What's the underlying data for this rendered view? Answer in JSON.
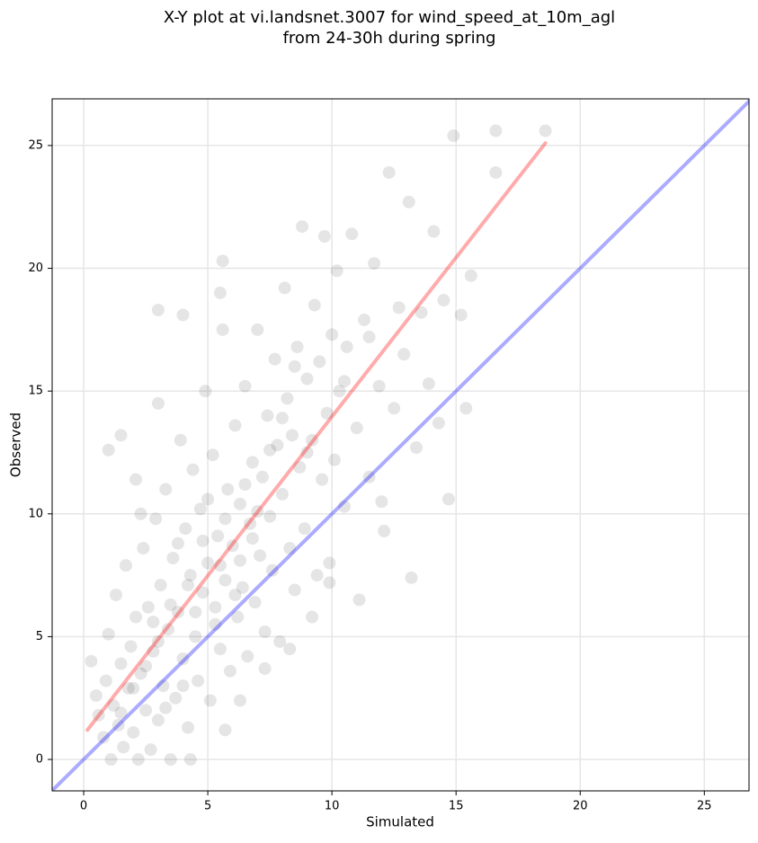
{
  "chart_data": {
    "type": "scatter",
    "title": [
      "X-Y plot at vi.landsnet.3007 for wind_speed_at_10m_agl",
      "from 24-30h during spring"
    ],
    "x_label": "Simulated",
    "y_label": "Observed",
    "xlim": [
      -1.27,
      26.8
    ],
    "ylim": [
      -1.28,
      26.9
    ],
    "xticks": [
      0,
      5,
      10,
      15,
      20,
      25
    ],
    "yticks": [
      0,
      5,
      10,
      15,
      20,
      25
    ],
    "grid": true,
    "color": "#000000",
    "x": [
      0.3,
      0.5,
      0.6,
      0.8,
      0.9,
      1.0,
      1.1,
      1.2,
      1.3,
      1.4,
      1.5,
      1.6,
      1.7,
      1.8,
      1.9,
      2.0,
      2.1,
      2.2,
      2.3,
      2.4,
      2.5,
      2.6,
      2.7,
      2.8,
      2.9,
      3.0,
      3.1,
      3.2,
      3.3,
      3.4,
      3.5,
      3.6,
      3.7,
      3.8,
      3.9,
      4.0,
      4.1,
      4.2,
      4.3,
      4.4,
      4.5,
      4.6,
      4.7,
      4.8,
      4.9,
      5.0,
      5.1,
      5.2,
      5.3,
      5.4,
      5.5,
      5.6,
      5.7,
      5.8,
      5.9,
      6.0,
      6.1,
      6.2,
      6.3,
      6.4,
      6.5,
      6.6,
      6.7,
      6.8,
      6.9,
      7.0,
      7.1,
      7.2,
      7.3,
      7.4,
      7.5,
      7.6,
      7.7,
      7.8,
      7.9,
      8.0,
      8.1,
      8.2,
      8.3,
      8.4,
      8.5,
      8.6,
      8.7,
      8.8,
      8.9,
      9.0,
      9.2,
      9.3,
      9.4,
      9.5,
      9.6,
      9.7,
      9.8,
      9.9,
      10.0,
      10.1,
      10.2,
      10.3,
      10.5,
      10.6,
      10.8,
      11.0,
      11.1,
      11.3,
      11.5,
      11.7,
      11.9,
      12.1,
      12.3,
      12.5,
      12.7,
      12.9,
      13.1,
      13.2,
      13.4,
      13.6,
      13.9,
      14.1,
      14.3,
      14.5,
      14.7,
      14.9,
      15.2,
      15.4,
      15.6,
      16.6,
      16.6,
      18.6,
      3.0,
      3.5,
      4.2,
      4.8,
      5.3,
      5.7,
      6.1,
      6.5,
      4.0,
      2.5,
      3.3,
      5.0,
      5.5,
      6.3,
      7.0,
      7.5,
      8.0,
      4.5,
      3.8,
      2.0,
      1.5,
      2.8,
      6.8,
      9.0,
      8.5,
      10.5,
      11.5,
      4.3,
      5.7,
      6.3,
      7.3,
      8.3,
      9.2,
      9.9,
      12.0,
      2.1,
      3.0,
      4.0,
      3.0,
      5.6,
      5.5,
      1.0,
      1.5,
      2.3
    ],
    "values": [
      4.0,
      2.6,
      1.8,
      0.9,
      3.2,
      5.1,
      0.0,
      2.2,
      6.7,
      1.4,
      3.9,
      0.5,
      7.9,
      2.9,
      4.6,
      1.1,
      5.8,
      0.0,
      3.5,
      8.6,
      2.0,
      6.2,
      0.4,
      4.4,
      9.8,
      1.6,
      7.1,
      3.0,
      11.0,
      5.3,
      0.0,
      8.2,
      2.5,
      6.0,
      13.0,
      4.1,
      9.4,
      1.3,
      7.5,
      11.8,
      5.0,
      3.2,
      10.2,
      6.8,
      15.0,
      8.0,
      2.4,
      12.4,
      6.2,
      9.1,
      4.5,
      17.5,
      7.3,
      11.0,
      3.6,
      8.7,
      13.6,
      5.8,
      10.4,
      7.0,
      15.2,
      4.2,
      9.6,
      12.1,
      6.4,
      17.5,
      8.3,
      11.5,
      5.2,
      14.0,
      9.9,
      7.7,
      16.3,
      12.8,
      4.8,
      10.8,
      19.2,
      14.7,
      8.6,
      13.2,
      6.9,
      16.8,
      11.9,
      21.7,
      9.4,
      15.5,
      13.0,
      18.5,
      7.5,
      16.2,
      11.4,
      21.3,
      14.1,
      8.0,
      17.3,
      12.2,
      19.9,
      15.0,
      10.3,
      16.8,
      21.4,
      13.5,
      6.5,
      17.9,
      11.5,
      20.2,
      15.2,
      9.3,
      23.9,
      14.3,
      18.4,
      16.5,
      22.7,
      7.4,
      12.7,
      18.2,
      15.3,
      21.5,
      13.7,
      18.7,
      10.6,
      25.4,
      18.1,
      14.3,
      19.7,
      25.6,
      23.9,
      25.6,
      4.8,
      6.3,
      7.1,
      8.9,
      5.5,
      9.8,
      6.7,
      11.2,
      3.0,
      3.8,
      2.1,
      10.6,
      7.9,
      8.1,
      10.1,
      12.6,
      13.9,
      6.0,
      8.8,
      2.9,
      1.9,
      5.6,
      9.0,
      12.5,
      16.0,
      15.4,
      17.2,
      0.0,
      1.2,
      2.4,
      3.7,
      4.5,
      5.8,
      7.2,
      10.5,
      11.4,
      14.5,
      18.1,
      18.3,
      20.3,
      19.0,
      12.6,
      13.2,
      10.0
    ],
    "lines": [
      {
        "color": "#0000ff",
        "x": [
          -1.27,
          26.8
        ],
        "values": [
          -1.27,
          26.8
        ]
      },
      {
        "color": "#ff0000",
        "x": [
          0.15,
          18.6
        ],
        "values": [
          1.2,
          25.1
        ]
      }
    ]
  }
}
